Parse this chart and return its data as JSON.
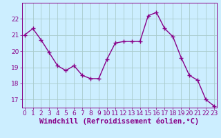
{
  "x": [
    0,
    1,
    2,
    3,
    4,
    5,
    6,
    7,
    8,
    9,
    10,
    11,
    12,
    13,
    14,
    15,
    16,
    17,
    18,
    19,
    20,
    21,
    22,
    23
  ],
  "y": [
    21.0,
    21.4,
    20.7,
    19.9,
    19.1,
    18.8,
    19.1,
    18.5,
    18.3,
    18.3,
    19.5,
    20.5,
    20.6,
    20.6,
    20.6,
    22.2,
    22.4,
    21.4,
    20.9,
    19.6,
    18.5,
    18.2,
    17.0,
    16.6
  ],
  "line_color": "#880088",
  "marker": "+",
  "marker_size": 4,
  "bg_color": "#cceeff",
  "grid_color": "#aacccc",
  "xlabel": "Windchill (Refroidissement éolien,°C)",
  "ylim": [
    16.5,
    23.0
  ],
  "xlim": [
    -0.3,
    23.3
  ],
  "yticks": [
    17,
    18,
    19,
    20,
    21,
    22
  ],
  "xticks": [
    0,
    1,
    2,
    3,
    4,
    5,
    6,
    7,
    8,
    9,
    10,
    11,
    12,
    13,
    14,
    15,
    16,
    17,
    18,
    19,
    20,
    21,
    22,
    23
  ],
  "tick_color": "#880088",
  "tick_label_fontsize": 6.5,
  "xlabel_fontsize": 7.5,
  "line_width": 1.0
}
